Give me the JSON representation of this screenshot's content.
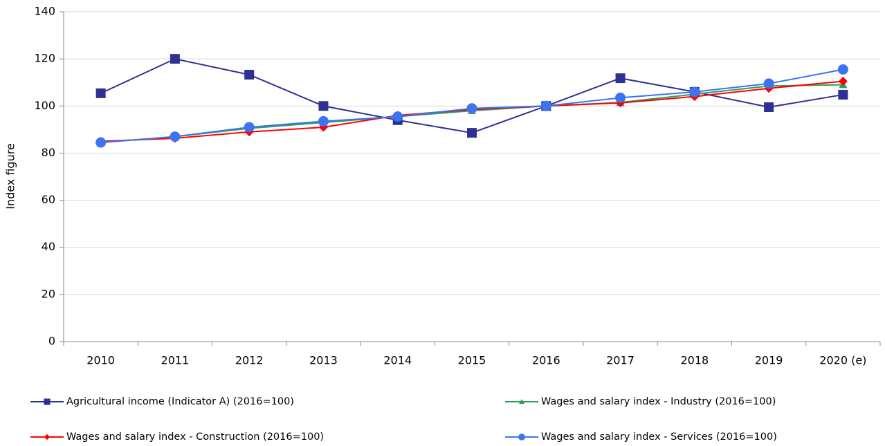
{
  "chart_data": {
    "type": "line",
    "y_label": "Index figure",
    "categories": [
      "2010",
      "2011",
      "2012",
      "2013",
      "2014",
      "2015",
      "2016",
      "2017",
      "2018",
      "2019",
      "2020 (e)"
    ],
    "series": [
      {
        "name": "Agricultural income (Indicator A) (2016=100)",
        "color": "#2e3192",
        "marker": "square",
        "values": [
          105.4,
          120,
          113.3,
          100,
          94,
          88.6,
          100,
          111.8,
          106,
          99.5,
          104.8
        ]
      },
      {
        "name": "Wages and salary index - Industry (2016=100)",
        "color": "#2e9e5b",
        "marker": "triangle",
        "values": [
          84.5,
          87,
          90.5,
          93,
          95.5,
          98,
          100,
          101.5,
          105,
          108.5,
          109
        ]
      },
      {
        "name": "Wages and salary index - Construction (2016=100)",
        "color": "#ff0000",
        "marker": "diamond",
        "values": [
          85,
          86.3,
          89,
          91,
          96,
          98.5,
          100,
          101.3,
          104,
          107.5,
          110.5
        ]
      },
      {
        "name": "Wages and salary index - Services (2016=100)",
        "color": "#3b73f0",
        "marker": "circle",
        "values": [
          84.5,
          87,
          91,
          93.5,
          95.5,
          99,
          100,
          103.5,
          106,
          109.5,
          115.5
        ]
      }
    ],
    "ylim": [
      0,
      140
    ],
    "yticks": [
      0,
      20,
      40,
      60,
      80,
      100,
      120,
      140
    ],
    "grid": true,
    "legend": "bottom"
  }
}
